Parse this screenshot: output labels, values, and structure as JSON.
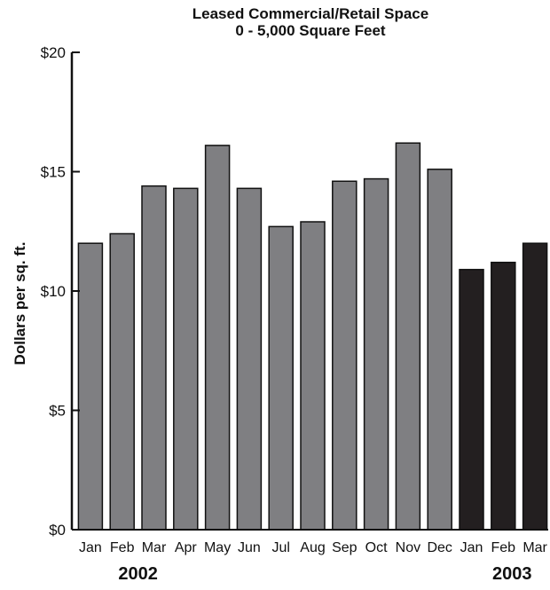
{
  "chart_data": {
    "type": "bar",
    "title": "Leased Commercial/Retail Space",
    "subtitle": "0 - 5,000 Square Feet",
    "xlabel": "",
    "ylabel": "Dollars per sq. ft.",
    "ylim": [
      0,
      20
    ],
    "yticks": [
      0,
      5,
      10,
      15,
      20
    ],
    "ytick_labels": [
      "$0",
      "$5",
      "$10",
      "$15",
      "$20"
    ],
    "grid": false,
    "categories": [
      "Jan",
      "Feb",
      "Mar",
      "Apr",
      "May",
      "Jun",
      "Jul",
      "Aug",
      "Sep",
      "Oct",
      "Nov",
      "Dec",
      "Jan",
      "Feb",
      "Mar"
    ],
    "values": [
      12.0,
      12.4,
      14.4,
      14.3,
      16.1,
      14.3,
      12.7,
      12.9,
      14.6,
      14.7,
      16.2,
      15.1,
      10.9,
      11.2,
      12.0
    ],
    "year_groups": [
      {
        "label": "2002",
        "start_index": 0,
        "end_index": 11,
        "color": "#7f7f82"
      },
      {
        "label": "2003",
        "start_index": 12,
        "end_index": 14,
        "color": "#231f20"
      }
    ],
    "colors": {
      "bar_2002": "#7f7f82",
      "bar_2003": "#231f20",
      "outline": "#111111",
      "axis": "#111111"
    }
  }
}
